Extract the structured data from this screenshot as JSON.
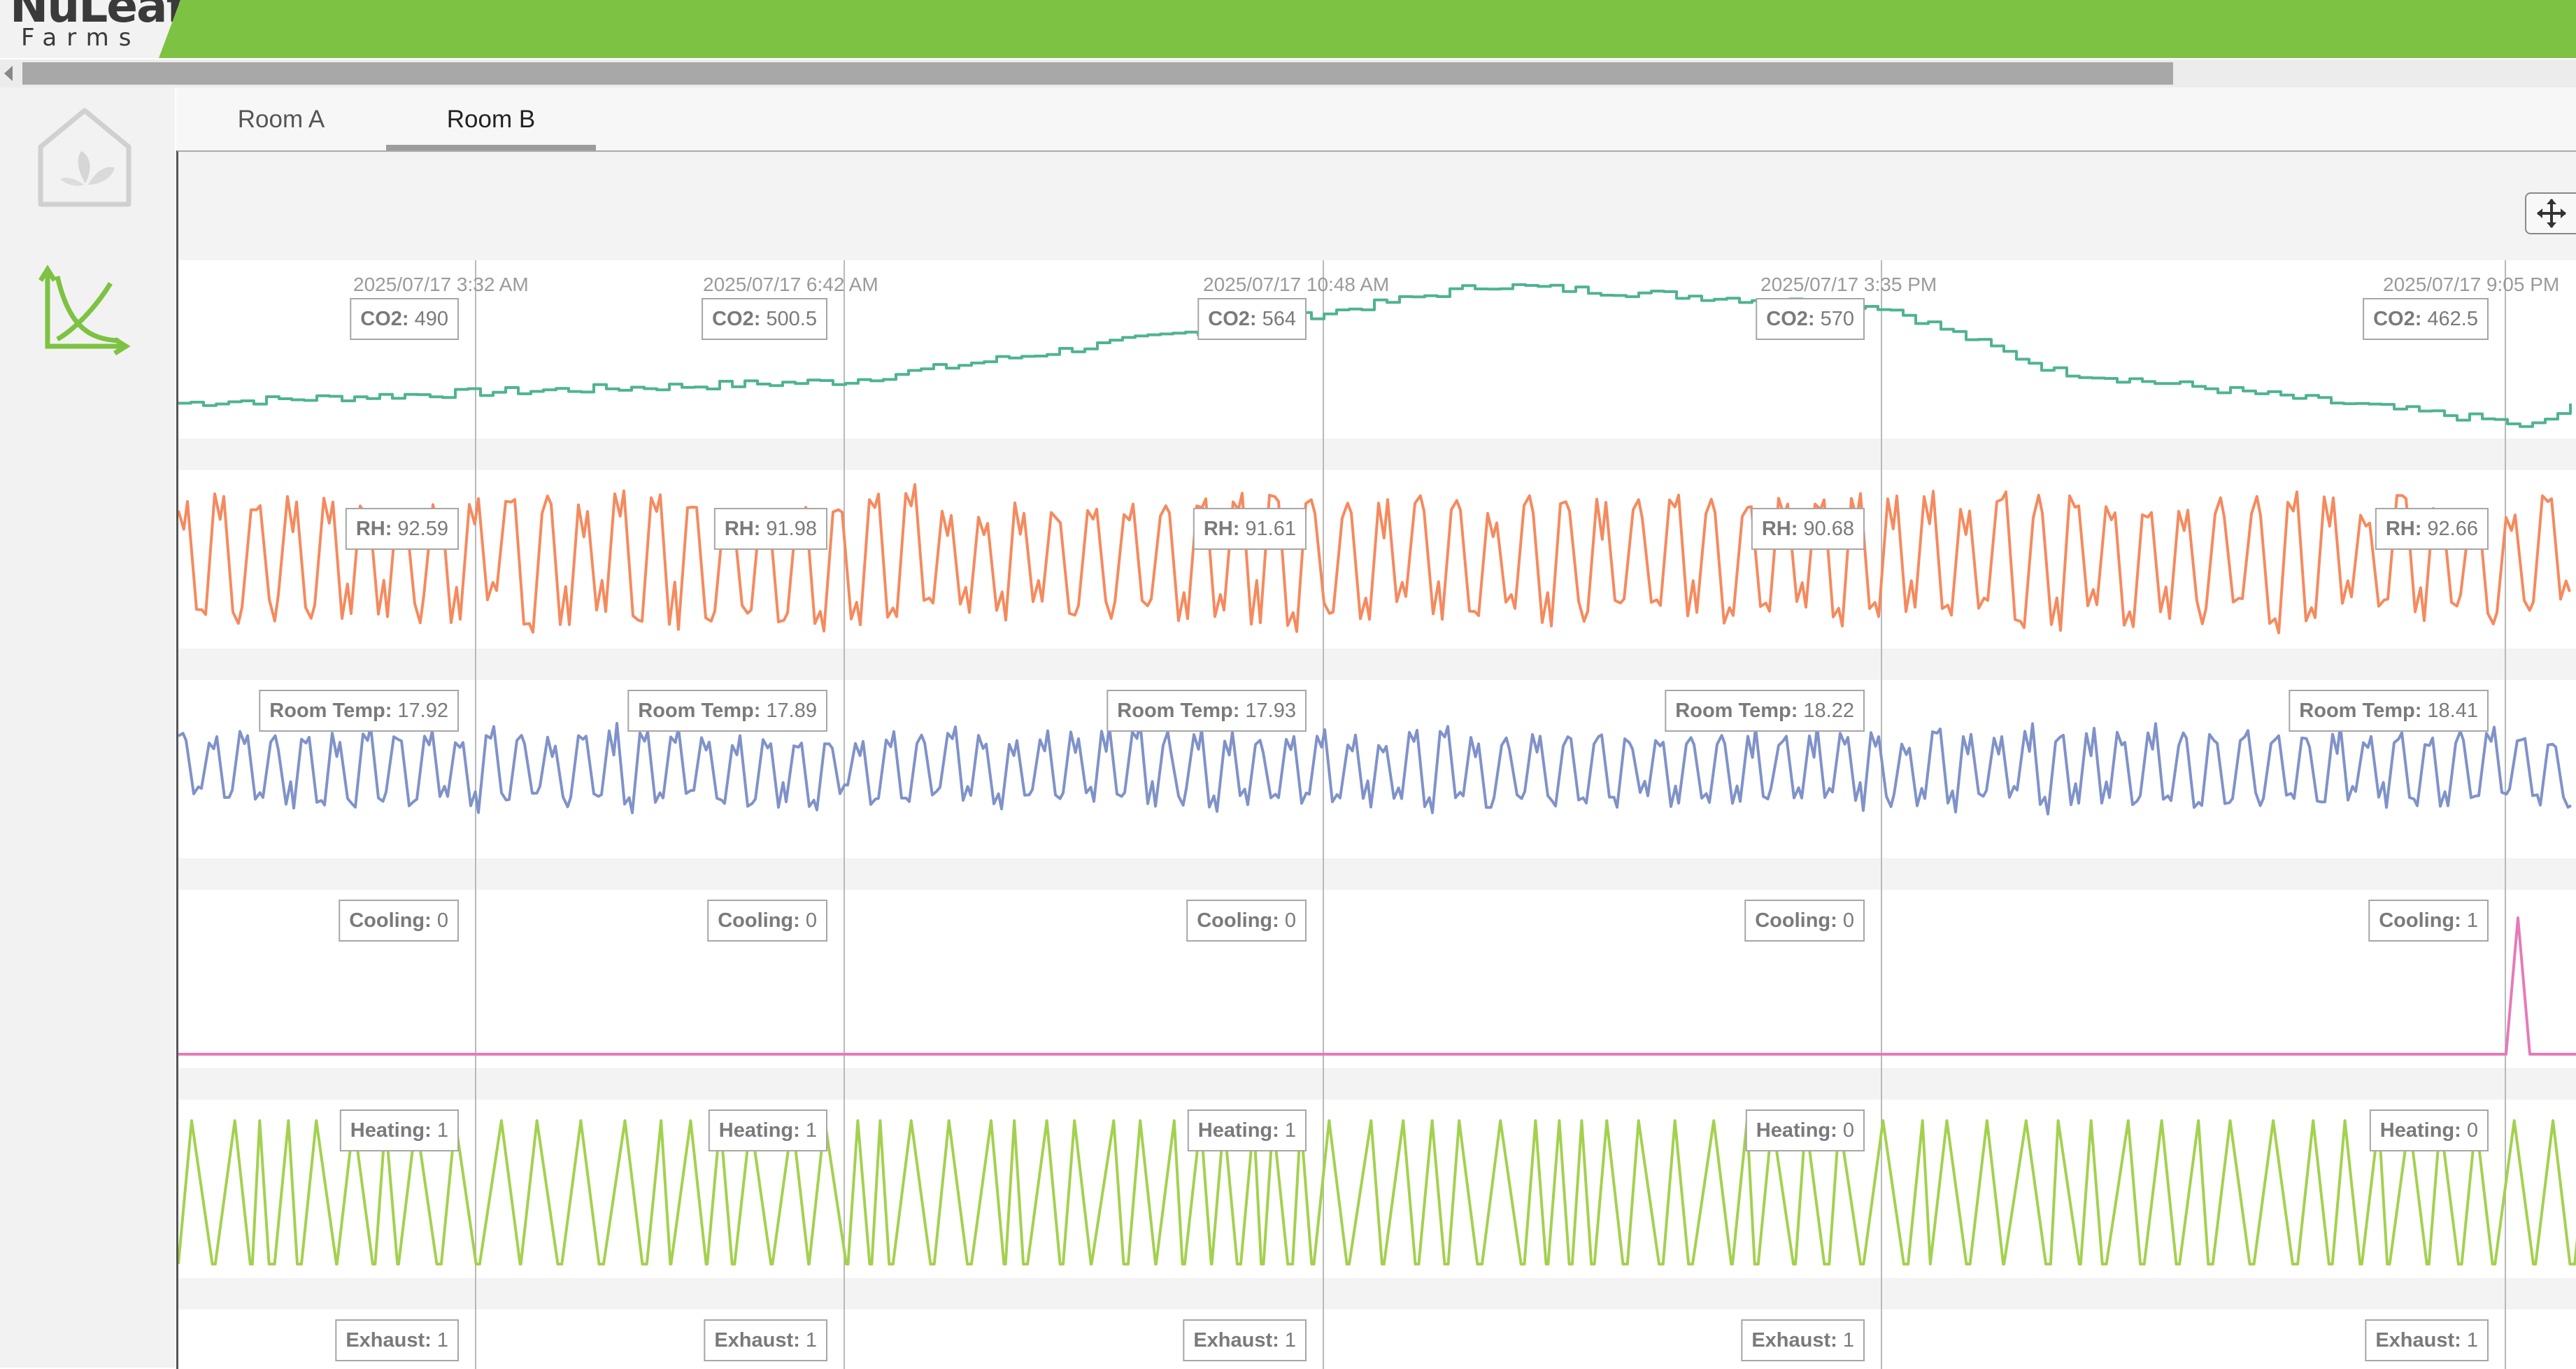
{
  "brand": {
    "name": "NuLeaf",
    "sub": "Farms"
  },
  "tabs": [
    {
      "label": "Room A",
      "active": false
    },
    {
      "label": "Room B",
      "active": true
    }
  ],
  "icons": {
    "home": "leaf-house-icon",
    "chart": "chart-curve-icon",
    "move": "move-arrows-icon"
  },
  "colors": {
    "brand": "#7dc242",
    "co2": "#4fb393",
    "rh": "#f58a5e",
    "temp": "#7f92c9",
    "cooling": "#e67ab9",
    "heating": "#a3d14f"
  },
  "chart_data": {
    "type": "line",
    "cursor_timestamps": [
      "2025/07/17 3:32 AM",
      "2025/07/17 6:42 AM",
      "2025/07/17 10:48 AM",
      "2025/07/17 3:35 PM",
      "2025/07/17 9:05 PM"
    ],
    "series": [
      {
        "name": "CO2",
        "readouts": [
          490,
          500.5,
          564,
          570,
          462.5
        ],
        "range": [
          460,
          600
        ]
      },
      {
        "name": "RH",
        "readouts": [
          92.59,
          91.98,
          91.61,
          90.68,
          92.66
        ],
        "range": [
          88,
          96
        ]
      },
      {
        "name": "Room Temp",
        "readouts": [
          17.92,
          17.89,
          17.93,
          18.22,
          18.41
        ],
        "range": [
          17,
          19
        ]
      },
      {
        "name": "Cooling",
        "readouts": [
          0,
          0,
          0,
          0,
          1
        ],
        "range": [
          0,
          1
        ]
      },
      {
        "name": "Heating",
        "readouts": [
          1,
          1,
          1,
          0,
          0
        ],
        "range": [
          0,
          1
        ]
      },
      {
        "name": "Exhaust",
        "readouts": [
          1,
          1,
          1,
          1,
          1
        ],
        "range": [
          0,
          1
        ]
      }
    ]
  }
}
